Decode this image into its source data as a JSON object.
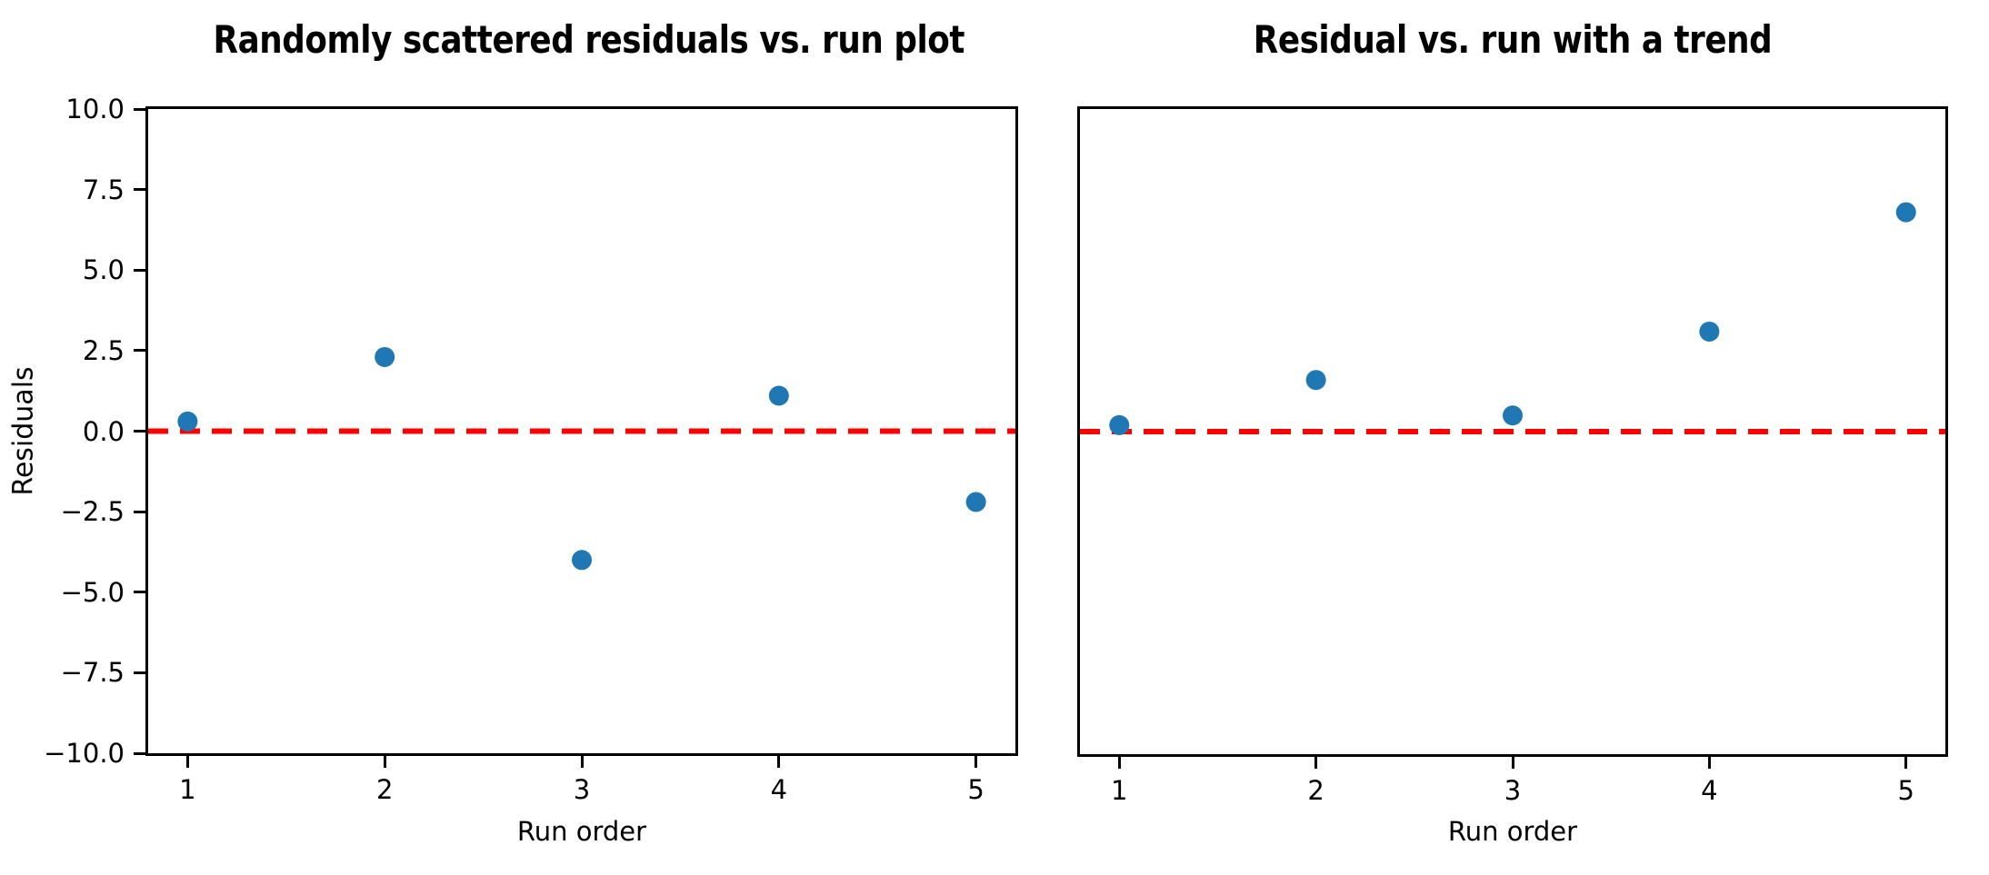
{
  "figure": {
    "background_color": "#ffffff",
    "text_color": "#000000",
    "spine_color": "#000000"
  },
  "chart_data": [
    {
      "type": "scatter",
      "title": "Randomly scattered residuals vs. run plot",
      "xlabel": "Run order",
      "ylabel": "Residuals",
      "x": [
        1,
        2,
        3,
        4,
        5
      ],
      "y": [
        0.3,
        2.3,
        -4.0,
        1.1,
        -2.2
      ],
      "xlim": [
        0.8,
        5.2
      ],
      "ylim": [
        -10,
        10
      ],
      "xticks": [
        1,
        2,
        3,
        4,
        5
      ],
      "xtick_labels": [
        "1",
        "2",
        "3",
        "4",
        "5"
      ],
      "yticks": [
        10.0,
        7.5,
        5.0,
        2.5,
        0.0,
        -2.5,
        -5.0,
        -7.5,
        -10.0
      ],
      "ytick_labels": [
        "10.0",
        "7.5",
        "5.0",
        "2.5",
        "0.0",
        "−2.5",
        "−5.0",
        "−7.5",
        "−10.0"
      ],
      "show_ytick_labels": true,
      "grid": false,
      "legend": null,
      "marker_color": "#1f77b4",
      "reference_line": {
        "y": 0,
        "color": "#ff0000",
        "style": "dashed"
      }
    },
    {
      "type": "scatter",
      "title": "Residual vs. run with a trend",
      "xlabel": "Run order",
      "ylabel": "",
      "x": [
        1,
        2,
        3,
        4,
        5
      ],
      "y": [
        0.2,
        1.6,
        0.5,
        3.1,
        6.8
      ],
      "xlim": [
        0.8,
        5.2
      ],
      "ylim": [
        -10,
        10
      ],
      "xticks": [
        1,
        2,
        3,
        4,
        5
      ],
      "xtick_labels": [
        "1",
        "2",
        "3",
        "4",
        "5"
      ],
      "yticks": [],
      "ytick_labels": [],
      "show_ytick_labels": false,
      "grid": false,
      "legend": null,
      "marker_color": "#1f77b4",
      "reference_line": {
        "y": 0,
        "color": "#ff0000",
        "style": "dashed"
      }
    }
  ]
}
